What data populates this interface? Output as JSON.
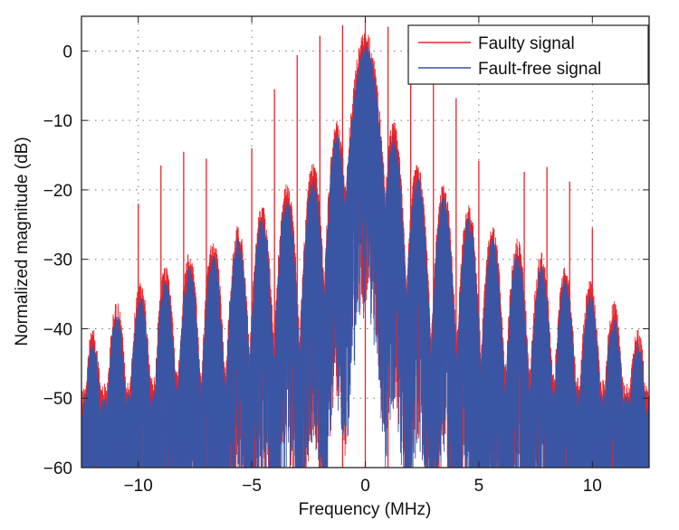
{
  "chart_data": {
    "type": "line",
    "title": "",
    "xlabel": "Frequency (MHz)",
    "ylabel": "Normalized magnitude (dB)",
    "xlim": [
      -12.5,
      12.5
    ],
    "ylim": [
      -60,
      5
    ],
    "xticks": [
      -10,
      -5,
      0,
      5,
      10
    ],
    "xtick_labels": [
      "−10",
      "−5",
      "0",
      "5",
      "10"
    ],
    "yticks": [
      -60,
      -50,
      -40,
      -30,
      -20,
      -10,
      0
    ],
    "ytick_labels": [
      "−60",
      "−50",
      "−40",
      "−30",
      "−20",
      "−10",
      "0"
    ],
    "grid": true,
    "legend": {
      "placement": "top-right",
      "entries": [
        "Faulty signal",
        "Fault-free signal"
      ]
    },
    "series": [
      {
        "name": "Faulty signal",
        "color": "#e8242b",
        "envelope_offset_db": 2,
        "spikes": {
          "freq_mhz": [
            -10,
            -9,
            -8,
            -7,
            -5,
            -4,
            -3,
            -2,
            -1,
            0,
            1,
            2,
            3,
            4,
            5,
            7,
            8,
            9,
            10
          ],
          "db": [
            -22,
            -16.5,
            -14.5,
            -15.5,
            -14,
            -5.5,
            -0.6,
            2.2,
            3.7,
            4.5,
            3.5,
            -4.6,
            -4.6,
            -6.8,
            -15.8,
            -17.4,
            -16.7,
            -18.8,
            -25.5
          ]
        }
      },
      {
        "name": "Fault-free signal",
        "color": "#3a55a4",
        "lobes": {
          "center_mhz": [
            0,
            1.25,
            2.3,
            3.45,
            4.55,
            5.6,
            6.7,
            7.75,
            8.8,
            9.9,
            10.95,
            12.0
          ],
          "peak_db": [
            1,
            -12,
            -18,
            -21,
            -24,
            -27,
            -29,
            -31,
            -33,
            -35,
            -38,
            -42
          ]
        }
      }
    ]
  }
}
